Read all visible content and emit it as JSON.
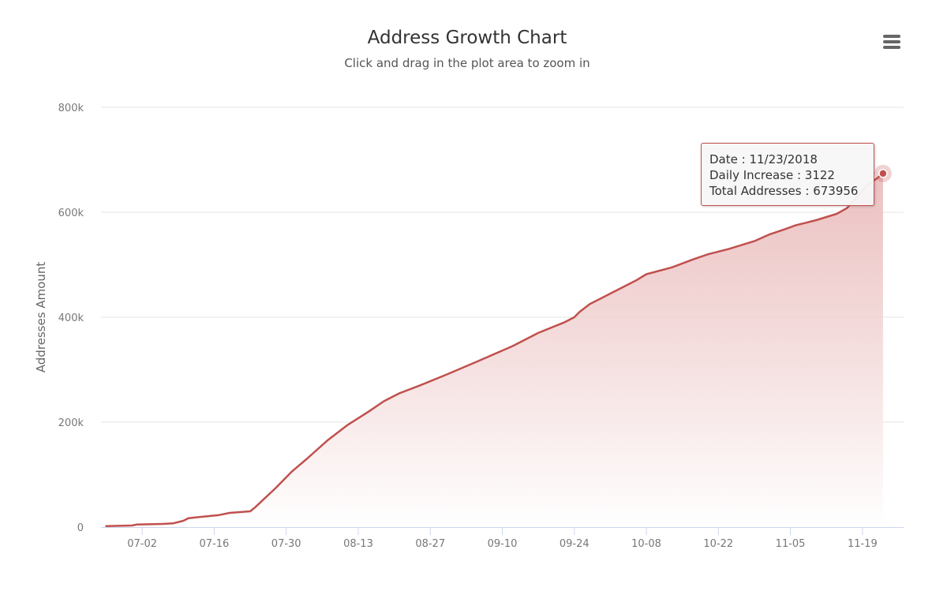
{
  "chart": {
    "title": "Address Growth Chart",
    "subtitle": "Click and drag in the plot area to zoom in",
    "menu_icon": "hamburger-menu-icon"
  },
  "tooltip": {
    "date_label": "Date",
    "date_value": "11/23/2018",
    "increase_label": "Daily Increase",
    "increase_value": "3122",
    "total_label": "Total Addresses",
    "total_value": "673956",
    "separator": " : "
  },
  "colors": {
    "line": "#c0504d",
    "area_top": "#e8b6b6",
    "tooltip_border": "#c0504d",
    "grid": "#e6e6e6"
  },
  "chart_data": {
    "type": "area",
    "title": "Address Growth Chart",
    "subtitle": "Click and drag in the plot area to zoom in",
    "xlabel": "",
    "ylabel": "Addresses Amount",
    "ylim": [
      0,
      800000
    ],
    "y_ticks": [
      0,
      200000,
      400000,
      600000,
      800000
    ],
    "y_tick_labels": [
      "0",
      "200k",
      "400k",
      "600k",
      "800k"
    ],
    "x_ticks": [
      "2018-07-02",
      "2018-07-16",
      "2018-07-30",
      "2018-08-13",
      "2018-08-27",
      "2018-09-10",
      "2018-09-24",
      "2018-10-08",
      "2018-10-22",
      "2018-11-05",
      "2018-11-19"
    ],
    "x_tick_labels": [
      "07-02",
      "07-16",
      "07-30",
      "08-13",
      "08-27",
      "09-10",
      "09-24",
      "10-08",
      "10-22",
      "11-05",
      "11-19"
    ],
    "xlim": [
      "2018-06-24",
      "2018-11-27"
    ],
    "grid": true,
    "legend": "none",
    "series": [
      {
        "name": "Total Addresses",
        "x": [
          "2018-06-25",
          "2018-06-30",
          "2018-07-01",
          "2018-07-06",
          "2018-07-08",
          "2018-07-10",
          "2018-07-11",
          "2018-07-17",
          "2018-07-19",
          "2018-07-23",
          "2018-07-24",
          "2018-07-28",
          "2018-07-31",
          "2018-08-03",
          "2018-08-07",
          "2018-08-11",
          "2018-08-15",
          "2018-08-18",
          "2018-08-21",
          "2018-08-25",
          "2018-08-30",
          "2018-09-05",
          "2018-09-12",
          "2018-09-17",
          "2018-09-22",
          "2018-09-24",
          "2018-09-25",
          "2018-09-27",
          "2018-09-29",
          "2018-10-03",
          "2018-10-06",
          "2018-10-08",
          "2018-10-13",
          "2018-10-17",
          "2018-10-20",
          "2018-10-24",
          "2018-10-29",
          "2018-11-01",
          "2018-11-04",
          "2018-11-06",
          "2018-11-10",
          "2018-11-14",
          "2018-11-16",
          "2018-11-18",
          "2018-11-20",
          "2018-11-22",
          "2018-11-23"
        ],
        "values": [
          2000,
          3000,
          5000,
          6000,
          7000,
          12000,
          17000,
          23000,
          27000,
          30000,
          38000,
          75000,
          105000,
          130000,
          165000,
          195000,
          220000,
          240000,
          255000,
          270000,
          290000,
          315000,
          345000,
          370000,
          390000,
          400000,
          410000,
          425000,
          435000,
          455000,
          470000,
          482000,
          495000,
          510000,
          520000,
          530000,
          545000,
          558000,
          568000,
          575000,
          585000,
          597000,
          608000,
          630000,
          652000,
          666000,
          673956
        ]
      }
    ],
    "highlight_point": {
      "x": "2018-11-23",
      "y": 673956
    }
  }
}
